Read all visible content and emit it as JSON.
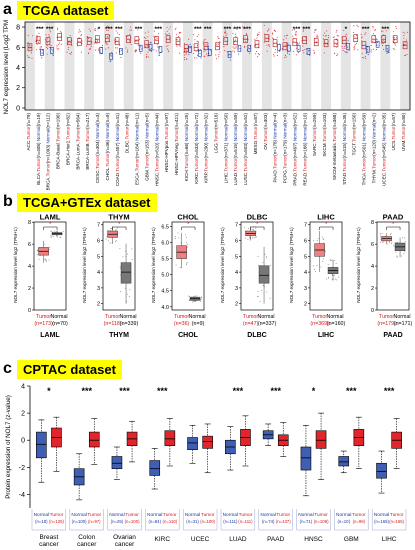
{
  "panel_a": {
    "letter": "a",
    "title": "TCGA dataset",
    "ylabel": "NOL7 expression level (Log2 TPM)",
    "ticks": [
      "0",
      "2",
      "4",
      "6",
      "8"
    ],
    "tumor_word": "Tumor",
    "normal_word": "Normal",
    "groups": [
      {
        "cancer": "ACC",
        "t": "79",
        "n": null,
        "sig": "",
        "tm": 6.0,
        "nm": null
      },
      {
        "cancer": "BLCA",
        "t": "408",
        "n": "19",
        "sig": "***",
        "tm": 6.7,
        "nm": 5.5
      },
      {
        "cancer": "BRCA",
        "t": "1093",
        "n": "112",
        "sig": "***",
        "tm": 6.6,
        "nm": 5.7
      },
      {
        "cancer": "BRCA-Basal",
        "t": "190",
        "n": null,
        "sig": "",
        "tm": 7.0,
        "nm": null
      },
      {
        "cancer": "BRCA-Her2",
        "t": "82",
        "n": null,
        "sig": "",
        "tm": 6.6,
        "nm": null
      },
      {
        "cancer": "BRCA-LumA",
        "t": "564",
        "n": null,
        "sig": "",
        "tm": 6.5,
        "nm": null
      },
      {
        "cancer": "BRCA-LumB",
        "t": "217",
        "n": null,
        "sig": "",
        "tm": 6.6,
        "nm": null
      },
      {
        "cancer": "CESC",
        "t": "304",
        "n": "3",
        "sig": "*",
        "tm": 6.8,
        "nm": 5.7
      },
      {
        "cancer": "CHOL",
        "t": "36",
        "n": "9",
        "sig": "***",
        "tm": 6.9,
        "nm": 5.1
      },
      {
        "cancer": "COAD",
        "t": "457",
        "n": "41",
        "sig": "***",
        "tm": 6.6,
        "nm": 5.6
      },
      {
        "cancer": "DLBC",
        "t": "48",
        "n": null,
        "sig": "",
        "tm": 6.8,
        "nm": null
      },
      {
        "cancer": "ESCA",
        "t": "184",
        "n": "11",
        "sig": "***",
        "tm": 6.7,
        "nm": 5.9
      },
      {
        "cancer": "GBM",
        "t": "153",
        "n": "5",
        "sig": "",
        "tm": 6.3,
        "nm": 6.0
      },
      {
        "cancer": "HNSC",
        "t": "520",
        "n": "44",
        "sig": "***",
        "tm": 6.7,
        "nm": 5.8
      },
      {
        "cancer": "HNSC-HPVpos",
        "t": "97",
        "n": null,
        "sig": "",
        "tm": 6.8,
        "nm": null
      },
      {
        "cancer": "HNSC-HPVneg",
        "t": "421",
        "n": null,
        "sig": "",
        "tm": 6.6,
        "nm": null
      },
      {
        "cancer": "KICH",
        "t": "66",
        "n": "25",
        "sig": "",
        "tm": 5.9,
        "nm": 5.8
      },
      {
        "cancer": "KIRC",
        "t": "533",
        "n": "72",
        "sig": "***",
        "tm": 6.0,
        "nm": 5.4
      },
      {
        "cancer": "KIRP",
        "t": "290",
        "n": "32",
        "sig": "***",
        "tm": 6.1,
        "nm": 5.5
      },
      {
        "cancer": "LGG",
        "t": "516",
        "n": null,
        "sig": "",
        "tm": 6.1,
        "nm": null
      },
      {
        "cancer": "LIHC",
        "t": "371",
        "n": "50",
        "sig": "***",
        "tm": 6.6,
        "nm": 5.3
      },
      {
        "cancer": "LUAD",
        "t": "515",
        "n": "59",
        "sig": "***",
        "tm": 6.6,
        "nm": 5.9
      },
      {
        "cancer": "LUSC",
        "t": "503",
        "n": "52",
        "sig": "***",
        "tm": 6.8,
        "nm": 5.9
      },
      {
        "cancer": "MESO",
        "t": "87",
        "n": null,
        "sig": "",
        "tm": 6.3,
        "nm": null
      },
      {
        "cancer": "OV",
        "t": "303",
        "n": null,
        "sig": "",
        "tm": 6.9,
        "nm": null
      },
      {
        "cancer": "PAAD",
        "t": "178",
        "n": "4",
        "sig": "",
        "tm": 6.4,
        "nm": 6.0
      },
      {
        "cancer": "PCPG",
        "t": "179",
        "n": "3",
        "sig": "",
        "tm": 6.1,
        "nm": 5.9
      },
      {
        "cancer": "PRAD",
        "t": "497",
        "n": "52",
        "sig": "***",
        "tm": 6.5,
        "nm": 5.9
      },
      {
        "cancer": "READ",
        "t": "166",
        "n": "10",
        "sig": "***",
        "tm": 6.7,
        "nm": 5.6
      },
      {
        "cancer": "SARC",
        "t": "259",
        "n": null,
        "sig": "",
        "tm": 6.5,
        "nm": null
      },
      {
        "cancer": "SKCM",
        "t": "103",
        "n": null,
        "sig": "",
        "tm": 6.4,
        "nm": null
      },
      {
        "cancer": "SKCM-metastasis",
        "t": "368",
        "n": null,
        "sig": "",
        "tm": 6.4,
        "nm": null
      },
      {
        "cancer": "STAD",
        "t": "415",
        "n": "35",
        "sig": "*",
        "tm": 6.7,
        "nm": 6.1
      },
      {
        "cancer": "TGCT",
        "t": "150",
        "n": null,
        "sig": "",
        "tm": 6.9,
        "nm": null
      },
      {
        "cancer": "THCA",
        "t": "501",
        "n": "59",
        "sig": "***",
        "tm": 6.2,
        "nm": 5.8
      },
      {
        "cancer": "THYM",
        "t": "120",
        "n": "2",
        "sig": "",
        "tm": 6.8,
        "nm": 6.3
      },
      {
        "cancer": "UCEC",
        "t": "545",
        "n": "35",
        "sig": "***",
        "tm": 6.8,
        "nm": 5.9
      },
      {
        "cancer": "UCS",
        "t": "57",
        "n": null,
        "sig": "",
        "tm": 6.8,
        "nm": null
      },
      {
        "cancer": "UVM",
        "t": "80",
        "n": null,
        "sig": "",
        "tm": 6.2,
        "nm": null
      }
    ]
  },
  "panel_b": {
    "letter": "b",
    "title": "TCGA+GTEx  dataset",
    "ylabel": "NOL7 expression level log2 (TPM+1)",
    "tumor_word": "Tumor",
    "normal_word": "Normal",
    "subplots": [
      {
        "name": "LAML",
        "tumor_n": "(n=173)",
        "normal_n": "(n=70)",
        "sig": "*",
        "yticks": [
          "0",
          "2",
          "4",
          "6",
          "8"
        ],
        "ymin": 0,
        "ymax": 8.2,
        "tumor": {
          "q1": 5.0,
          "med": 5.35,
          "q3": 5.7,
          "lo": 4.3,
          "hi": 6.3
        },
        "normal": {
          "q1": 6.85,
          "med": 6.95,
          "q3": 7.05,
          "lo": 6.6,
          "hi": 7.2
        }
      },
      {
        "name": "THYM",
        "tumor_n": "(n=118)",
        "normal_n": "(n=339)",
        "sig": "*",
        "yticks": [
          "2",
          "3",
          "4",
          "5",
          "6",
          "7"
        ],
        "ymin": 1.6,
        "ymax": 7.3,
        "tumor": {
          "q1": 6.2,
          "med": 6.4,
          "q3": 6.6,
          "lo": 5.8,
          "hi": 6.9
        },
        "normal": {
          "q1": 3.3,
          "med": 4.0,
          "q3": 4.6,
          "lo": 2.0,
          "hi": 5.8
        }
      },
      {
        "name": "CHOL",
        "tumor_n": "(n=36)",
        "normal_n": "(n=9)",
        "sig": "*",
        "yticks": [
          "4.0",
          "4.5",
          "5.0",
          "5.5",
          "6.0",
          "6.5"
        ],
        "ymin": 3.9,
        "ymax": 6.7,
        "tumor": {
          "q1": 5.5,
          "med": 5.7,
          "q3": 5.9,
          "lo": 5.2,
          "hi": 6.3
        },
        "normal": {
          "q1": 4.2,
          "med": 4.25,
          "q3": 4.3,
          "lo": 4.15,
          "hi": 4.35
        }
      },
      {
        "name": "DLBC",
        "tumor_n": "(n=47)",
        "normal_n": "(n=337)",
        "sig": "*",
        "yticks": [
          "2",
          "3",
          "4",
          "5",
          "6",
          "7"
        ],
        "ymin": 1.6,
        "ymax": 7.3,
        "tumor": {
          "q1": 6.3,
          "med": 6.45,
          "q3": 6.6,
          "lo": 6.0,
          "hi": 6.9
        },
        "normal": {
          "q1": 3.3,
          "med": 3.8,
          "q3": 4.4,
          "lo": 2.0,
          "hi": 5.6
        }
      },
      {
        "name": "LIHC",
        "tumor_n": "(n=369)",
        "normal_n": "(n=160)",
        "sig": "*",
        "yticks": [
          "2",
          "3",
          "4",
          "5",
          "6",
          "7"
        ],
        "ymin": 1.6,
        "ymax": 7.3,
        "tumor": {
          "q1": 5.0,
          "med": 5.4,
          "q3": 5.8,
          "lo": 4.0,
          "hi": 6.6
        },
        "normal": {
          "q1": 3.9,
          "med": 4.1,
          "q3": 4.3,
          "lo": 3.5,
          "hi": 4.8
        }
      },
      {
        "name": "PAAD",
        "tumor_n": "(n=179)",
        "normal_n": "(n=171)",
        "sig": "*",
        "yticks": [
          "0",
          "2",
          "4",
          "6",
          "8"
        ],
        "ymin": 0,
        "ymax": 8.2,
        "tumor": {
          "q1": 6.3,
          "med": 6.5,
          "q3": 6.7,
          "lo": 6.0,
          "hi": 7.0
        },
        "normal": {
          "q1": 5.4,
          "med": 5.75,
          "q3": 6.1,
          "lo": 4.8,
          "hi": 6.6
        }
      }
    ]
  },
  "panel_c": {
    "letter": "c",
    "title": "CPTAC dataset",
    "ylabel": "Protein expression of NOL7 (z-value)",
    "yticks": [
      "-4",
      "-2",
      "0",
      "2",
      "4"
    ],
    "ymin": -5,
    "ymax": 4,
    "tumor_word": "Tumor",
    "normal_word": "Normal",
    "colors": {
      "normal": "#3f5fb5",
      "tumor": "#e0262c"
    },
    "groups": [
      {
        "label": "Breast cancer",
        "normal_n": "(n=18)",
        "tumor_n": "(n=125)",
        "sig": "*",
        "normal": {
          "q1": -1.3,
          "med": -0.3,
          "q3": 0.6,
          "lo": -3.1,
          "hi": 1.5
        },
        "tumor": {
          "q1": -0.5,
          "med": 0.2,
          "q3": 0.9,
          "lo": -2.3,
          "hi": 1.7
        }
      },
      {
        "label": "Colon cancer",
        "normal_n": "(n=100)",
        "tumor_n": "(n=97)",
        "sig": "***",
        "normal": {
          "q1": -3.3,
          "med": -2.7,
          "q3": -2.1,
          "lo": -4.4,
          "hi": -1.0
        },
        "tumor": {
          "q1": -0.5,
          "med": 0.0,
          "q3": 0.6,
          "lo": -1.8,
          "hi": 1.6
        }
      },
      {
        "label": "Ovarian cancer",
        "normal_n": "(n=25)",
        "tumor_n": "(n=100)",
        "sig": "***",
        "normal": {
          "q1": -2.1,
          "med": -1.7,
          "q3": -1.2,
          "lo": -2.9,
          "hi": -0.5
        },
        "tumor": {
          "q1": -0.4,
          "med": 0.1,
          "q3": 0.6,
          "lo": -1.6,
          "hi": 1.4
        }
      },
      {
        "label": "KIRC",
        "normal_n": "(n=84)",
        "tumor_n": "(n=110)",
        "sig": "***",
        "normal": {
          "q1": -2.6,
          "med": -2.1,
          "q3": -1.5,
          "lo": -3.6,
          "hi": -0.6
        },
        "tumor": {
          "q1": -0.4,
          "med": 0.1,
          "q3": 0.7,
          "lo": -1.9,
          "hi": 1.6
        }
      },
      {
        "label": "UCEC",
        "normal_n": "(n=31)",
        "tumor_n": "(n=100)",
        "sig": "",
        "normal": {
          "q1": -0.7,
          "med": -0.2,
          "q3": 0.2,
          "lo": -1.7,
          "hi": 1.1
        },
        "tumor": {
          "q1": -0.6,
          "med": -0.1,
          "q3": 0.3,
          "lo": -2.4,
          "hi": 1.2
        }
      },
      {
        "label": "LUAD",
        "normal_n": "(n=111)",
        "tumor_n": "(n=111)",
        "sig": "***",
        "normal": {
          "q1": -1.0,
          "med": -0.5,
          "q3": 0.0,
          "lo": -2.2,
          "hi": 1.0
        },
        "tumor": {
          "q1": -0.4,
          "med": 0.2,
          "q3": 0.8,
          "lo": -1.9,
          "hi": 1.8
        }
      },
      {
        "label": "PAAD",
        "normal_n": "(n=74)",
        "tumor_n": "(n=137)",
        "sig": "***",
        "normal": {
          "q1": 0.1,
          "med": 0.4,
          "q3": 0.7,
          "lo": -0.4,
          "hi": 1.2
        },
        "tumor": {
          "q1": -0.4,
          "med": 0.0,
          "q3": 0.4,
          "lo": -1.2,
          "hi": 1.3
        }
      },
      {
        "label": "HNSC",
        "normal_n": "(n=71)",
        "tumor_n": "(n=108)",
        "sig": "*",
        "normal": {
          "q1": -2.2,
          "med": -1.3,
          "q3": -0.5,
          "lo": -4.1,
          "hi": 1.1
        },
        "tumor": {
          "q1": -0.6,
          "med": 0.0,
          "q3": 0.7,
          "lo": -2.9,
          "hi": 2.0
        }
      },
      {
        "label": "GBM",
        "normal_n": "(n=10)",
        "tumor_n": "(n=99)",
        "sig": "***",
        "normal": {
          "q1": -1.9,
          "med": -1.6,
          "q3": -1.2,
          "lo": -2.4,
          "hi": -0.8
        },
        "tumor": {
          "q1": -0.4,
          "med": 0.2,
          "q3": 0.8,
          "lo": -2.1,
          "hi": 1.7
        }
      },
      {
        "label": "LIHC",
        "normal_n": "(n=165)",
        "tumor_n": "(n=165)",
        "sig": "***",
        "normal": {
          "q1": -2.8,
          "med": -2.3,
          "q3": -1.7,
          "lo": -3.9,
          "hi": -0.8
        },
        "tumor": {
          "q1": -0.6,
          "med": 0.0,
          "q3": 0.6,
          "lo": -2.1,
          "hi": 1.6
        }
      }
    ]
  },
  "chart_data": [
    {
      "type": "box",
      "title": "TCGA dataset",
      "ylabel": "NOL7 expression level (Log2 TPM)",
      "ylim": [
        0,
        8
      ],
      "categories": [
        "ACC",
        "BLCA",
        "BRCA",
        "BRCA-Basal",
        "BRCA-Her2",
        "BRCA-LumA",
        "BRCA-LumB",
        "CESC",
        "CHOL",
        "COAD",
        "DLBC",
        "ESCA",
        "GBM",
        "HNSC",
        "HNSC-HPVpos",
        "HNSC-HPVneg",
        "KICH",
        "KIRC",
        "KIRP",
        "LGG",
        "LIHC",
        "LUAD",
        "LUSC",
        "MESO",
        "OV",
        "PAAD",
        "PCPG",
        "PRAD",
        "READ",
        "SARC",
        "SKCM",
        "SKCM-metastasis",
        "STAD",
        "TGCT",
        "THCA",
        "THYM",
        "UCEC",
        "UCS",
        "UVM"
      ],
      "series": [
        {
          "name": "Tumor",
          "values": [
            6.0,
            6.7,
            6.6,
            7.0,
            6.6,
            6.5,
            6.6,
            6.8,
            6.9,
            6.6,
            6.8,
            6.7,
            6.3,
            6.7,
            6.8,
            6.6,
            5.9,
            6.0,
            6.1,
            6.1,
            6.6,
            6.6,
            6.8,
            6.3,
            6.9,
            6.4,
            6.1,
            6.5,
            6.7,
            6.5,
            6.4,
            6.4,
            6.7,
            6.9,
            6.2,
            6.8,
            6.8,
            6.8,
            6.2
          ]
        },
        {
          "name": "Normal",
          "values": [
            null,
            5.5,
            5.7,
            null,
            null,
            null,
            null,
            5.7,
            5.1,
            5.6,
            null,
            5.9,
            6.0,
            5.8,
            null,
            null,
            5.8,
            5.4,
            5.5,
            null,
            5.3,
            5.9,
            5.9,
            null,
            null,
            6.0,
            5.9,
            5.9,
            5.6,
            null,
            null,
            null,
            6.1,
            null,
            5.8,
            6.3,
            5.9,
            null,
            null
          ]
        }
      ]
    },
    {
      "type": "box",
      "title": "TCGA+GTEx  dataset",
      "ylabel": "NOL7 expression level log2 (TPM+1)",
      "categories": [
        "LAML",
        "THYM",
        "CHOL",
        "DLBC",
        "LIHC",
        "PAAD"
      ],
      "series": [
        {
          "name": "Tumor",
          "values": [
            5.35,
            6.4,
            5.7,
            6.45,
            5.4,
            6.5
          ]
        },
        {
          "name": "Normal",
          "values": [
            6.95,
            4.0,
            4.25,
            3.8,
            4.1,
            5.75
          ]
        }
      ]
    },
    {
      "type": "box",
      "title": "CPTAC dataset",
      "ylabel": "Protein expression of NOL7 (z-value)",
      "ylim": [
        -5,
        4
      ],
      "categories": [
        "Breast cancer",
        "Colon cancer",
        "Ovarian cancer",
        "KIRC",
        "UCEC",
        "LUAD",
        "PAAD",
        "HNSC",
        "GBM",
        "LIHC"
      ],
      "series": [
        {
          "name": "Normal",
          "values": [
            -0.3,
            -2.7,
            -1.7,
            -2.1,
            -0.2,
            -0.5,
            0.4,
            -1.3,
            -1.6,
            -2.3
          ]
        },
        {
          "name": "Tumor",
          "values": [
            0.2,
            0.0,
            0.1,
            0.1,
            -0.1,
            0.2,
            0.0,
            0.0,
            0.2,
            0.0
          ]
        }
      ]
    }
  ]
}
